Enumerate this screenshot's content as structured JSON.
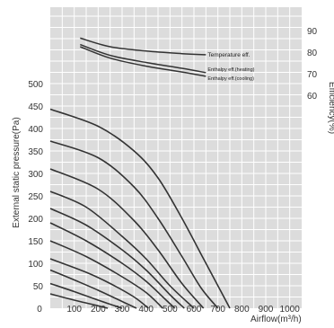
{
  "chart_data": {
    "type": "line",
    "title": "",
    "xlabel": "Airflow(m³/h)",
    "ylabel": "External static pressure(Pa)",
    "y2label": "Efficiency(%)",
    "xlim": [
      0,
      1050
    ],
    "ylim": [
      0,
      670
    ],
    "y2lim": [
      55,
      95
    ],
    "xticks": [
      "0",
      "100",
      "200",
      "300",
      "400",
      "500",
      "600",
      "700",
      "800",
      "900",
      "1000"
    ],
    "yticks": [
      "50",
      "100",
      "150",
      "200",
      "250",
      "300",
      "350",
      "400",
      "450",
      "500"
    ],
    "y2ticks": [
      "60",
      "70",
      "80",
      "90"
    ],
    "grid": true,
    "plot_background": "#dcdcdc",
    "grid_color": "#ffffff",
    "line_color": "#333333",
    "pressure_curves": [
      {
        "x": [
          0,
          200,
          350,
          450,
          550,
          640,
          700,
          750
        ],
        "y": [
          443,
          405,
          350,
          290,
          200,
          110,
          50,
          0
        ]
      },
      {
        "x": [
          0,
          200,
          350,
          450,
          550,
          630,
          700
        ],
        "y": [
          372,
          335,
          270,
          200,
          115,
          45,
          0
        ]
      },
      {
        "x": [
          0,
          200,
          350,
          450,
          550,
          640
        ],
        "y": [
          310,
          265,
          195,
          130,
          55,
          0
        ]
      },
      {
        "x": [
          0,
          150,
          300,
          400,
          500,
          600
        ],
        "y": [
          260,
          225,
          160,
          110,
          50,
          0
        ]
      },
      {
        "x": [
          0,
          150,
          300,
          400,
          500,
          560
        ],
        "y": [
          222,
          185,
          130,
          85,
          30,
          0
        ]
      },
      {
        "x": [
          0,
          150,
          300,
          400,
          480,
          520
        ],
        "y": [
          190,
          150,
          100,
          60,
          20,
          0
        ]
      },
      {
        "x": [
          0,
          150,
          300,
          400,
          470
        ],
        "y": [
          150,
          115,
          70,
          35,
          0
        ]
      },
      {
        "x": [
          0,
          150,
          250,
          350,
          410
        ],
        "y": [
          110,
          80,
          55,
          25,
          0
        ]
      },
      {
        "x": [
          0,
          100,
          200,
          300,
          360
        ],
        "y": [
          85,
          63,
          40,
          15,
          0
        ]
      },
      {
        "x": [
          0,
          100,
          200,
          300
        ],
        "y": [
          55,
          37,
          18,
          0
        ]
      },
      {
        "x": [
          0,
          100,
          180,
          240
        ],
        "y": [
          32,
          18,
          8,
          0
        ]
      }
    ],
    "efficiency_curves": [
      {
        "name": "Temperature eff.",
        "x": [
          125,
          250,
          400,
          550,
          650
        ],
        "y": [
          86.5,
          82.5,
          80.5,
          79.3,
          78.8
        ]
      },
      {
        "name": "Enthalpy eff.(heating)",
        "x": [
          125,
          250,
          400,
          550,
          650
        ],
        "y": [
          83.5,
          78.5,
          75.2,
          72.5,
          70.5
        ]
      },
      {
        "name": "Enthalpy eff.(cooling)",
        "x": [
          125,
          250,
          400,
          550,
          650
        ],
        "y": [
          82.5,
          77.2,
          73.5,
          70.8,
          68.8
        ]
      }
    ]
  }
}
